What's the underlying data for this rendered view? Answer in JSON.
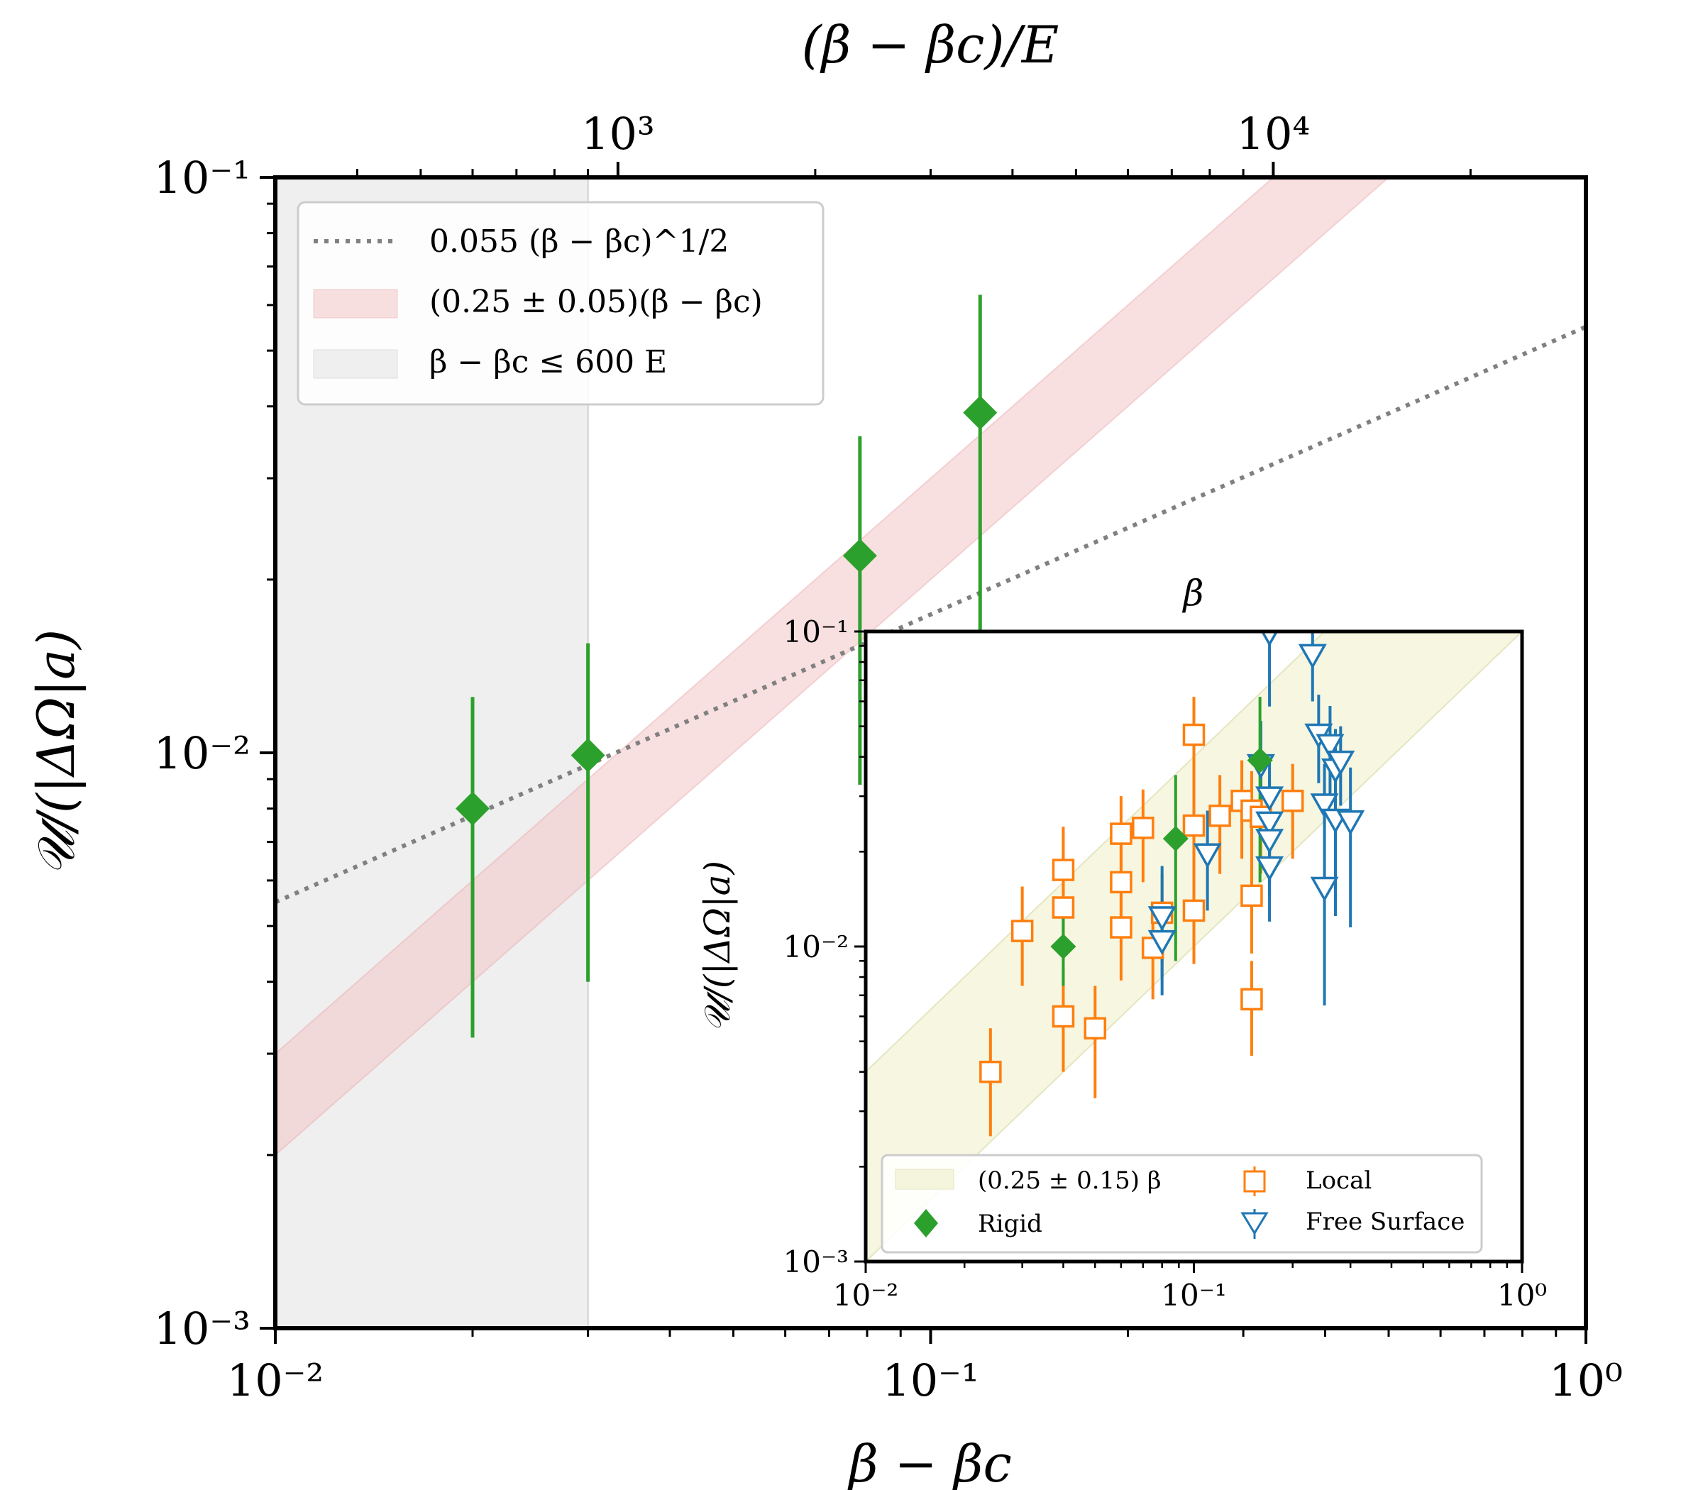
{
  "chart_data": [
    {
      "type": "scatter",
      "name": "main",
      "xscale": "log",
      "yscale": "log",
      "xlim": [
        0.01,
        1
      ],
      "ylim": [
        0.001,
        0.1
      ],
      "xlabel": "β − βc",
      "ylabel": "𝒰/(|ΔΩ|a)",
      "top_xlabel": "(β − βc)/E",
      "top_xlim": [
        300,
        30000
      ],
      "xticks": [
        {
          "v": 0.01,
          "label": "10⁻²"
        },
        {
          "v": 0.1,
          "label": "10⁻¹"
        },
        {
          "v": 1,
          "label": "10⁰"
        }
      ],
      "yticks": [
        {
          "v": 0.001,
          "label": "10⁻³"
        },
        {
          "v": 0.01,
          "label": "10⁻²"
        },
        {
          "v": 0.1,
          "label": "10⁻¹"
        }
      ],
      "top_xticks": [
        {
          "v": 1000,
          "label": "10³"
        },
        {
          "v": 10000,
          "label": "10⁴"
        }
      ],
      "legend_position": "upper-left",
      "colors": {
        "rigid": "#2ca02c",
        "band": "#f2c4c7",
        "shade": "#efefef",
        "dotted": "#808080",
        "local": "#ff7f0e",
        "free": "#1f77b4",
        "inset_band": "#f4f5dc"
      },
      "shaded_region": {
        "x_from": 0.01,
        "x_to": 0.03,
        "label": "β − βc ≤ 600 E"
      },
      "fit_line": {
        "coef": 0.055,
        "exponent": 0.5,
        "label": "0.055 (β − βc)^1/2"
      },
      "band": {
        "low": 0.2,
        "high": 0.3,
        "label": "(0.25 ± 0.05)(β − βc)"
      },
      "series": [
        {
          "name": "Rigid",
          "marker": "diamond",
          "points": [
            {
              "x": 0.02,
              "y": 0.008,
              "ylo": 0.0032,
              "yhi": 0.0125
            },
            {
              "x": 0.03,
              "y": 0.0099,
              "ylo": 0.004,
              "yhi": 0.0155
            },
            {
              "x": 0.078,
              "y": 0.022,
              "ylo": 0.0088,
              "yhi": 0.0355
            },
            {
              "x": 0.119,
              "y": 0.039,
              "ylo": 0.0155,
              "yhi": 0.0625
            }
          ]
        }
      ]
    },
    {
      "type": "scatter",
      "name": "inset",
      "xscale": "log",
      "yscale": "log",
      "xlim": [
        0.01,
        1
      ],
      "ylim": [
        0.001,
        0.1
      ],
      "xlabel": "β",
      "ylabel": "𝒰/(|ΔΩ|a)",
      "xticks": [
        {
          "v": 0.01,
          "label": "10⁻²"
        },
        {
          "v": 0.1,
          "label": "10⁻¹"
        },
        {
          "v": 1,
          "label": "10⁰"
        }
      ],
      "yticks": [
        {
          "v": 0.001,
          "label": "10⁻³"
        },
        {
          "v": 0.01,
          "label": "10⁻²"
        },
        {
          "v": 0.1,
          "label": "10⁻¹"
        }
      ],
      "legend_position": "lower-center",
      "band": {
        "low": 0.1,
        "high": 0.4,
        "label": "(0.25 ± 0.15) β"
      },
      "series": [
        {
          "name": "Local",
          "marker": "square",
          "points": [
            {
              "x": 0.024,
              "y": 0.004,
              "ylo": 0.0025,
              "yhi": 0.0055
            },
            {
              "x": 0.03,
              "y": 0.0112,
              "ylo": 0.0075,
              "yhi": 0.0155
            },
            {
              "x": 0.04,
              "y": 0.0175,
              "ylo": 0.012,
              "yhi": 0.024
            },
            {
              "x": 0.04,
              "y": 0.0133,
              "ylo": 0.009,
              "yhi": 0.018
            },
            {
              "x": 0.04,
              "y": 0.006,
              "ylo": 0.004,
              "yhi": 0.0085
            },
            {
              "x": 0.05,
              "y": 0.0055,
              "ylo": 0.0033,
              "yhi": 0.0075
            },
            {
              "x": 0.06,
              "y": 0.0228,
              "ylo": 0.015,
              "yhi": 0.03
            },
            {
              "x": 0.06,
              "y": 0.016,
              "ylo": 0.011,
              "yhi": 0.021
            },
            {
              "x": 0.06,
              "y": 0.0115,
              "ylo": 0.0078,
              "yhi": 0.015
            },
            {
              "x": 0.07,
              "y": 0.0238,
              "ylo": 0.016,
              "yhi": 0.0315
            },
            {
              "x": 0.075,
              "y": 0.0099,
              "ylo": 0.0068,
              "yhi": 0.0132
            },
            {
              "x": 0.08,
              "y": 0.0128,
              "ylo": 0.0088,
              "yhi": 0.017
            },
            {
              "x": 0.1,
              "y": 0.047,
              "ylo": 0.031,
              "yhi": 0.062
            },
            {
              "x": 0.1,
              "y": 0.0242,
              "ylo": 0.016,
              "yhi": 0.032
            },
            {
              "x": 0.1,
              "y": 0.013,
              "ylo": 0.0088,
              "yhi": 0.017
            },
            {
              "x": 0.12,
              "y": 0.026,
              "ylo": 0.017,
              "yhi": 0.035
            },
            {
              "x": 0.14,
              "y": 0.029,
              "ylo": 0.019,
              "yhi": 0.039
            },
            {
              "x": 0.15,
              "y": 0.027,
              "ylo": 0.018,
              "yhi": 0.036
            },
            {
              "x": 0.15,
              "y": 0.0145,
              "ylo": 0.0095,
              "yhi": 0.019
            },
            {
              "x": 0.15,
              "y": 0.0068,
              "ylo": 0.0045,
              "yhi": 0.009
            },
            {
              "x": 0.16,
              "y": 0.0258,
              "ylo": 0.017,
              "yhi": 0.034
            },
            {
              "x": 0.2,
              "y": 0.029,
              "ylo": 0.019,
              "yhi": 0.038
            }
          ]
        },
        {
          "name": "Free Surface",
          "marker": "triangle-down",
          "points": [
            {
              "x": 0.08,
              "y": 0.0125,
              "ylo": 0.008,
              "yhi": 0.018
            },
            {
              "x": 0.08,
              "y": 0.0105,
              "ylo": 0.007,
              "yhi": 0.014
            },
            {
              "x": 0.11,
              "y": 0.0198,
              "ylo": 0.013,
              "yhi": 0.027
            },
            {
              "x": 0.16,
              "y": 0.038,
              "ylo": 0.025,
              "yhi": 0.052
            },
            {
              "x": 0.17,
              "y": 0.1,
              "ylo": 0.0578,
              "yhi": 0.1
            },
            {
              "x": 0.17,
              "y": 0.03,
              "ylo": 0.02,
              "yhi": 0.04
            },
            {
              "x": 0.17,
              "y": 0.025,
              "ylo": 0.016,
              "yhi": 0.034
            },
            {
              "x": 0.17,
              "y": 0.022,
              "ylo": 0.0145,
              "yhi": 0.03
            },
            {
              "x": 0.17,
              "y": 0.018,
              "ylo": 0.012,
              "yhi": 0.025
            },
            {
              "x": 0.23,
              "y": 0.085,
              "ylo": 0.06,
              "yhi": 0.1
            },
            {
              "x": 0.24,
              "y": 0.0475,
              "ylo": 0.033,
              "yhi": 0.063
            },
            {
              "x": 0.25,
              "y": 0.0285,
              "ylo": 0.019,
              "yhi": 0.038
            },
            {
              "x": 0.25,
              "y": 0.0155,
              "ylo": 0.0065,
              "yhi": 0.025
            },
            {
              "x": 0.26,
              "y": 0.044,
              "ylo": 0.03,
              "yhi": 0.058
            },
            {
              "x": 0.27,
              "y": 0.0368,
              "ylo": 0.024,
              "yhi": 0.049
            },
            {
              "x": 0.27,
              "y": 0.0255,
              "ylo": 0.0125,
              "yhi": 0.041
            },
            {
              "x": 0.28,
              "y": 0.039,
              "ylo": 0.028,
              "yhi": 0.05
            },
            {
              "x": 0.3,
              "y": 0.0252,
              "ylo": 0.0115,
              "yhi": 0.037
            }
          ]
        },
        {
          "name": "Rigid",
          "marker": "diamond",
          "points": [
            {
              "x": 0.04,
              "y": 0.01,
              "ylo": 0.0075,
              "yhi": 0.013
            },
            {
              "x": 0.088,
              "y": 0.022,
              "ylo": 0.009,
              "yhi": 0.035
            },
            {
              "x": 0.159,
              "y": 0.039,
              "ylo": 0.016,
              "yhi": 0.062
            }
          ]
        }
      ],
      "legend_labels": {
        "band": "(0.25 ± 0.15) β",
        "rigid": "Rigid",
        "local": "Local",
        "free": "Free Surface"
      }
    }
  ]
}
